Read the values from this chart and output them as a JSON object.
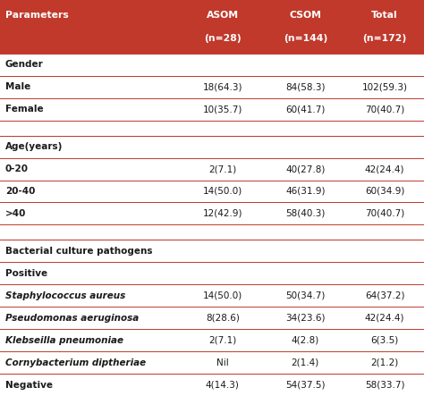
{
  "header_bg": "#C0392B",
  "header_text_color": "#FFFFFF",
  "row_bg_white": "#FFFFFF",
  "text_color_dark": "#1A1A1A",
  "line_color": "#C0392B",
  "col_headers_line1": [
    "Parameters",
    "ASOM",
    "CSOM",
    "Total"
  ],
  "col_headers_line2": [
    "",
    "(n=28)",
    "(n=144)",
    "(n=172)"
  ],
  "rows": [
    {
      "label": "Gender",
      "values": [
        "",
        "",
        ""
      ],
      "style": "section",
      "italic": false
    },
    {
      "label": "Male",
      "values": [
        "18(64.3)",
        "84(58.3)",
        "102(59.3)"
      ],
      "style": "data",
      "italic": false
    },
    {
      "label": "Female",
      "values": [
        "10(35.7)",
        "60(41.7)",
        "70(40.7)"
      ],
      "style": "data",
      "italic": false
    },
    {
      "label": "",
      "values": [
        "",
        "",
        ""
      ],
      "style": "spacer",
      "italic": false
    },
    {
      "label": "Age(years)",
      "values": [
        "",
        "",
        ""
      ],
      "style": "section",
      "italic": false
    },
    {
      "label": "0-20",
      "values": [
        "2(7.1)",
        "40(27.8)",
        "42(24.4)"
      ],
      "style": "data",
      "italic": false
    },
    {
      "label": "20-40",
      "values": [
        "14(50.0)",
        "46(31.9)",
        "60(34.9)"
      ],
      "style": "data",
      "italic": false
    },
    {
      "label": ">40",
      "values": [
        "12(42.9)",
        "58(40.3)",
        "70(40.7)"
      ],
      "style": "data",
      "italic": false
    },
    {
      "label": "",
      "values": [
        "",
        "",
        ""
      ],
      "style": "spacer",
      "italic": false
    },
    {
      "label": "Bacterial culture pathogens",
      "values": [
        "",
        "",
        ""
      ],
      "style": "section",
      "italic": false
    },
    {
      "label": "Positive",
      "values": [
        "",
        "",
        ""
      ],
      "style": "section",
      "italic": false
    },
    {
      "label": "Staphylococcus aureus",
      "values": [
        "14(50.0)",
        "50(34.7)",
        "64(37.2)"
      ],
      "style": "data",
      "italic": true
    },
    {
      "label": "Pseudomonas aeruginosa",
      "values": [
        "8(28.6)",
        "34(23.6)",
        "42(24.4)"
      ],
      "style": "data",
      "italic": true
    },
    {
      "label": "Klebseilla pneumoniae",
      "values": [
        "2(7.1)",
        "4(2.8)",
        "6(3.5)"
      ],
      "style": "data",
      "italic": true
    },
    {
      "label": "Cornybacterium diptheriae",
      "values": [
        "Nil",
        "2(1.4)",
        "2(1.2)"
      ],
      "style": "data",
      "italic": true
    },
    {
      "label": "Negative",
      "values": [
        "4(14.3)",
        "54(37.5)",
        "58(33.7)"
      ],
      "style": "data",
      "italic": false
    }
  ],
  "figsize": [
    4.74,
    4.43
  ],
  "dpi": 100
}
